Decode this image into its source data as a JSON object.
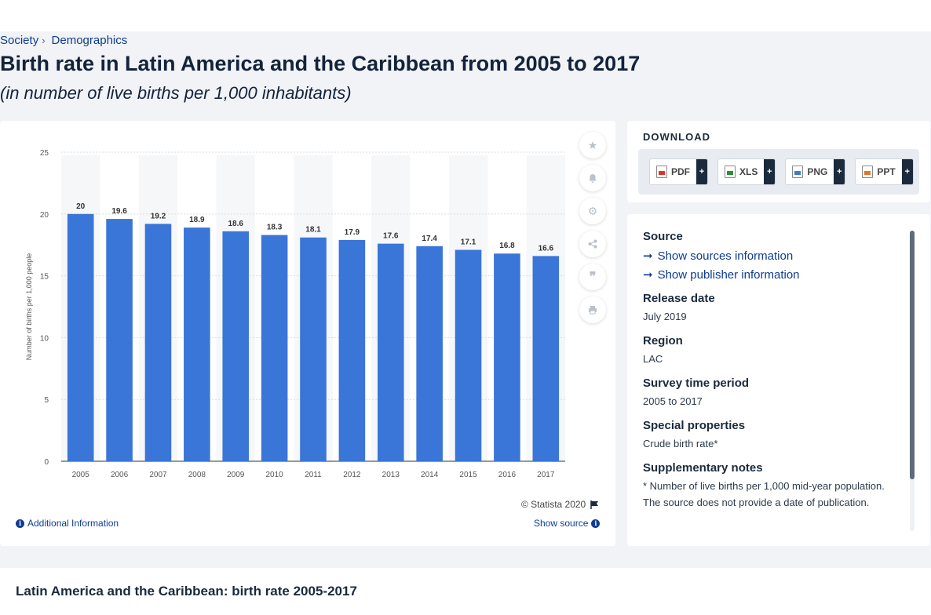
{
  "breadcrumb": {
    "item1": "Society",
    "item2": "Demographics"
  },
  "page": {
    "title": "Birth rate in Latin America and the Caribbean from 2005 to 2017",
    "subtitle": "(in number of live births per 1,000 inhabitants)"
  },
  "chart_footer": {
    "copyright": "© Statista 2020",
    "additional_info": "Additional Information",
    "show_source": "Show source"
  },
  "download": {
    "title": "DOWNLOAD",
    "buttons": [
      "PDF",
      "XLS",
      "PNG",
      "PPT"
    ],
    "plus": "+"
  },
  "info": {
    "source_label": "Source",
    "show_sources": "Show sources information",
    "show_publisher": "Show publisher information",
    "release_label": "Release date",
    "release_value": "July 2019",
    "region_label": "Region",
    "region_value": "LAC",
    "survey_label": "Survey time period",
    "survey_value": "2005 to 2017",
    "special_label": "Special properties",
    "special_value": "Crude birth rate*",
    "notes_label": "Supplementary notes",
    "notes_value_1": "* Number of live births per 1,000 mid-year population.",
    "notes_value_2": "The source does not provide a date of publication."
  },
  "bottom": {
    "title": "Latin America and the Caribbean: birth rate 2005-2017"
  },
  "chart_data": {
    "type": "bar",
    "categories": [
      "2005",
      "2006",
      "2007",
      "2008",
      "2009",
      "2010",
      "2011",
      "2012",
      "2013",
      "2014",
      "2015",
      "2016",
      "2017"
    ],
    "values": [
      20,
      19.6,
      19.2,
      18.9,
      18.6,
      18.3,
      18.1,
      17.9,
      17.6,
      17.4,
      17.1,
      16.8,
      16.6
    ],
    "ylabel": "Number of births per 1,000 people",
    "xlabel": "",
    "ylim": [
      0,
      25
    ],
    "yticks": [
      0,
      5,
      10,
      15,
      20,
      25
    ],
    "bar_color": "#3a75d8",
    "grid": true
  }
}
